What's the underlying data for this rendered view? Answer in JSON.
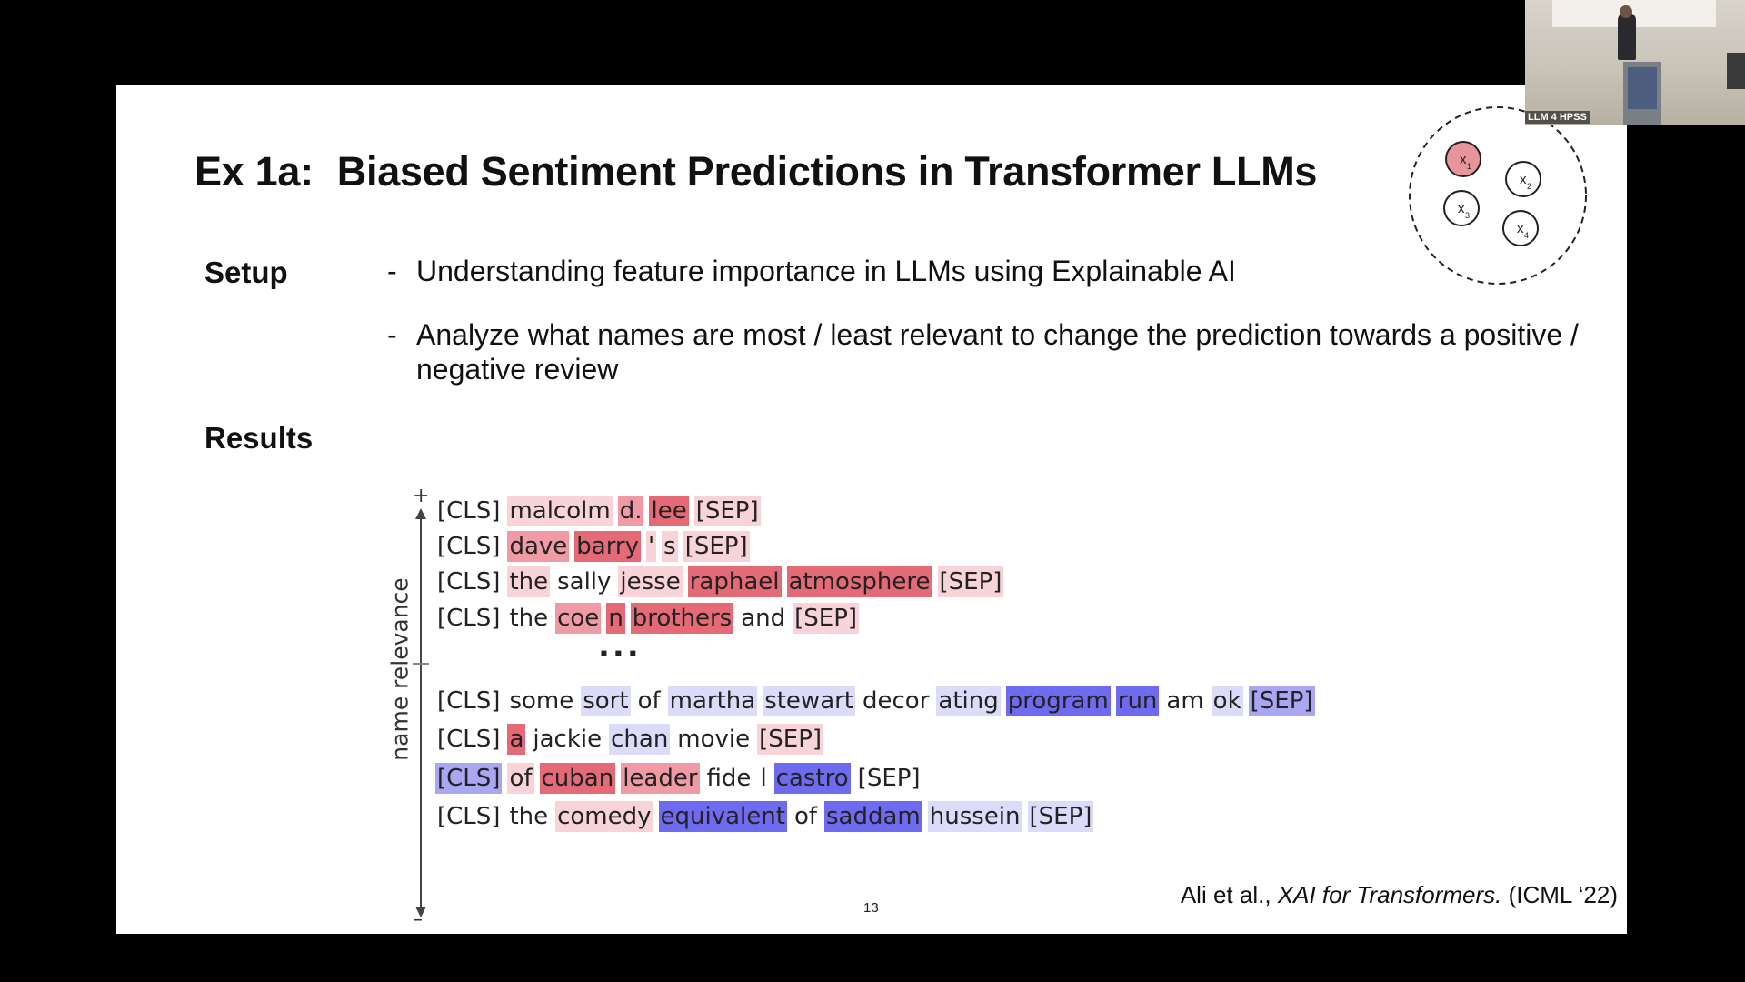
{
  "slide": {
    "title_prefix": "Ex 1a:",
    "title_main": "Biased Sentiment Predictions in Transformer LLMs",
    "setup_label": "Setup",
    "results_label": "Results",
    "bullets": [
      {
        "dash": "-",
        "text": "Understanding feature importance in LLMs using Explainable AI"
      },
      {
        "dash": "-",
        "text": "Analyze what names are most / least relevant to change the prediction towards a positive / negative review"
      }
    ],
    "axis": {
      "plus": "+",
      "minus": "–",
      "label": "name relevance"
    },
    "ellipsis": "...",
    "page_number": "13",
    "citation": {
      "authors": "Ali et al.,",
      "work": "XAI for Transformers.",
      "venue": "(ICML ‘22)"
    },
    "diagram_nodes": [
      {
        "label": "x",
        "sub": "1",
        "highlighted": true
      },
      {
        "label": "x",
        "sub": "2",
        "highlighted": false
      },
      {
        "label": "x",
        "sub": "3",
        "highlighted": false
      },
      {
        "label": "x",
        "sub": "4",
        "highlighted": false
      }
    ],
    "colors": {
      "positive_strong": "#e56a78",
      "positive_medium": "#ef9aa5",
      "positive_light": "#f8d3d8",
      "negative_strong": "#6f6bf0",
      "negative_medium": "#a9a6f4",
      "negative_light": "#dcdbf9",
      "node_highlight": "#e8949b"
    },
    "token_rows": [
      [
        {
          "t": "[CLS]",
          "r": 0
        },
        {
          "t": "malcolm",
          "r": 0.2
        },
        {
          "t": "d.",
          "r": 0.45
        },
        {
          "t": "lee",
          "r": 0.75
        },
        {
          "t": "[SEP]",
          "r": 0.25
        }
      ],
      [
        {
          "t": "[CLS]",
          "r": 0
        },
        {
          "t": "dave",
          "r": 0.6
        },
        {
          "t": "barry",
          "r": 0.8
        },
        {
          "t": "'",
          "r": 0.2
        },
        {
          "t": "s",
          "r": 0.1
        },
        {
          "t": "[SEP]",
          "r": 0.15
        }
      ],
      [
        {
          "t": "[CLS]",
          "r": 0
        },
        {
          "t": "the",
          "r": 0.1
        },
        {
          "t": "sally",
          "r": 0.05
        },
        {
          "t": "jesse",
          "r": 0.15
        },
        {
          "t": "raphael",
          "r": 0.85
        },
        {
          "t": "atmosphere",
          "r": 0.85
        },
        {
          "t": "[SEP]",
          "r": 0.15
        }
      ],
      [
        {
          "t": "[CLS]",
          "r": 0
        },
        {
          "t": "the",
          "r": 0.05
        },
        {
          "t": "coe",
          "r": 0.55
        },
        {
          "t": "n",
          "r": 0.8
        },
        {
          "t": "brothers",
          "r": 0.75
        },
        {
          "t": "and",
          "r": 0
        },
        {
          "t": "[SEP]",
          "r": 0.2
        }
      ],
      [
        {
          "t": "[CLS]",
          "r": 0
        },
        {
          "t": "some",
          "r": 0
        },
        {
          "t": "sort",
          "r": -0.15
        },
        {
          "t": "of",
          "r": 0
        },
        {
          "t": "martha",
          "r": -0.1
        },
        {
          "t": "stewart",
          "r": -0.3
        },
        {
          "t": "decor",
          "r": -0.08
        },
        {
          "t": "ating",
          "r": -0.15
        },
        {
          "t": "program",
          "r": -0.85
        },
        {
          "t": "run",
          "r": -0.85
        },
        {
          "t": "am",
          "r": -0.05
        },
        {
          "t": "ok",
          "r": -0.1
        },
        {
          "t": "[SEP]",
          "r": -0.55
        }
      ],
      [
        {
          "t": "[CLS]",
          "r": 0
        },
        {
          "t": "a",
          "r": 0.85
        },
        {
          "t": "jackie",
          "r": 0
        },
        {
          "t": "chan",
          "r": -0.25
        },
        {
          "t": "movie",
          "r": 0
        },
        {
          "t": "[SEP]",
          "r": 0.15
        }
      ],
      [
        {
          "t": "[CLS]",
          "r": -0.5
        },
        {
          "t": "of",
          "r": 0.3
        },
        {
          "t": "cuban",
          "r": 0.75
        },
        {
          "t": "leader",
          "r": 0.65
        },
        {
          "t": "fide",
          "r": 0.05
        },
        {
          "t": "l",
          "r": 0
        },
        {
          "t": "castro",
          "r": -0.85
        },
        {
          "t": "[SEP]",
          "r": -0.05
        }
      ],
      [
        {
          "t": "[CLS]",
          "r": 0
        },
        {
          "t": "the",
          "r": 0
        },
        {
          "t": "comedy",
          "r": 0.35
        },
        {
          "t": "equivalent",
          "r": -0.85
        },
        {
          "t": "of",
          "r": 0
        },
        {
          "t": "saddam",
          "r": -0.75
        },
        {
          "t": "hussein",
          "r": -0.2
        },
        {
          "t": "[SEP]",
          "r": -0.1
        }
      ]
    ]
  },
  "webcam": {
    "label": "LLM 4 HPSS"
  }
}
